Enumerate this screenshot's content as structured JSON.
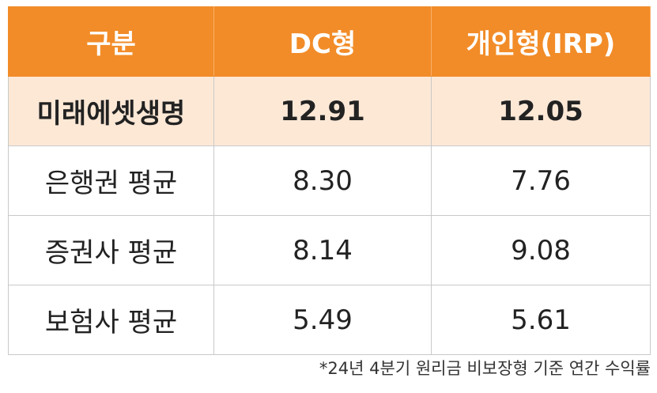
{
  "table": {
    "header": [
      "구분",
      "DC형",
      "개인형(IRP)"
    ],
    "rows": [
      [
        "미래에셋생명",
        "12.91",
        "12.05"
      ],
      [
        "은행권 평균",
        "8.30",
        "7.76"
      ],
      [
        "증권사 평균",
        "8.14",
        "9.08"
      ],
      [
        "보험사 평균",
        "5.49",
        "5.61"
      ]
    ]
  },
  "footnote": "*24년 4분기 원리금 비보장형 기준 연간 수익률"
}
